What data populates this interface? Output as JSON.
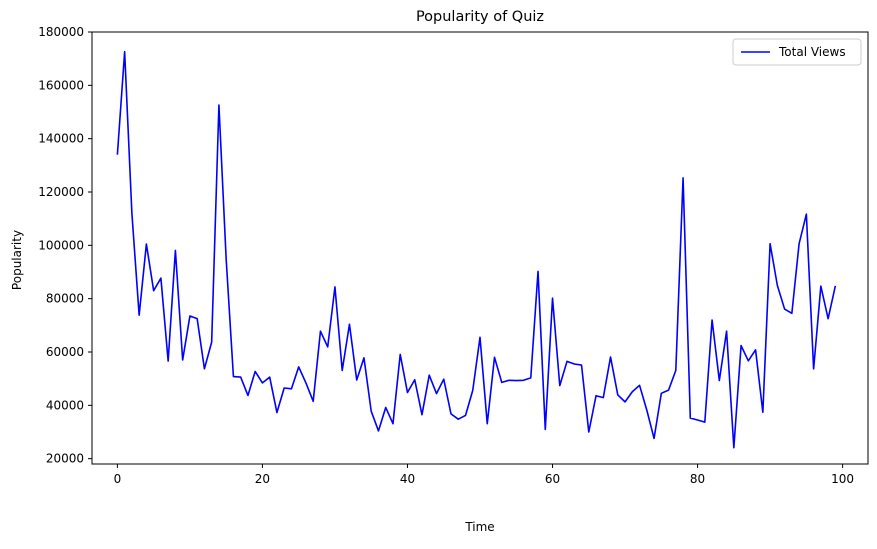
{
  "chart_data": {
    "type": "line",
    "title": "Popularity of Quiz",
    "xlabel": "Time",
    "ylabel": "Popularity",
    "xlim": [
      -3.5,
      103.5
    ],
    "ylim": [
      18000,
      180000
    ],
    "xticks": [
      0,
      20,
      40,
      60,
      80,
      100
    ],
    "yticks": [
      20000,
      40000,
      60000,
      80000,
      100000,
      120000,
      140000,
      160000,
      180000
    ],
    "grid": false,
    "legend": "top-right",
    "series": [
      {
        "name": "Total Views",
        "color": "#0000ff",
        "x": [
          0,
          1,
          2,
          3,
          4,
          5,
          6,
          7,
          8,
          9,
          10,
          11,
          12,
          13,
          14,
          15,
          16,
          17,
          18,
          19,
          20,
          21,
          22,
          23,
          24,
          25,
          26,
          27,
          28,
          29,
          30,
          31,
          32,
          33,
          34,
          35,
          36,
          37,
          38,
          39,
          40,
          41,
          42,
          43,
          44,
          45,
          46,
          47,
          48,
          49,
          50,
          51,
          52,
          53,
          54,
          55,
          56,
          57,
          58,
          59,
          60,
          61,
          62,
          63,
          64,
          65,
          66,
          67,
          68,
          69,
          70,
          71,
          72,
          73,
          74,
          75,
          76,
          77,
          78,
          79,
          80,
          81,
          82,
          83,
          84,
          85,
          86,
          87,
          88,
          89,
          90,
          91,
          92,
          93,
          94,
          95,
          96,
          97,
          98,
          99
        ],
        "y": [
          134000,
          172600,
          112000,
          73800,
          100500,
          83000,
          87700,
          56600,
          98100,
          57000,
          73500,
          72500,
          53700,
          63700,
          152600,
          94800,
          50800,
          50600,
          43700,
          52700,
          48400,
          50600,
          37300,
          46500,
          46200,
          54400,
          48400,
          41500,
          67800,
          61900,
          84400,
          53100,
          70400,
          49500,
          57800,
          37800,
          30400,
          39200,
          33100,
          59100,
          44800,
          49600,
          36500,
          51300,
          44400,
          49800,
          36800,
          34800,
          36200,
          45600,
          65500,
          33100,
          58000,
          48600,
          49400,
          49300,
          49400,
          50300,
          90200,
          31000,
          80200,
          47400,
          56500,
          55500,
          55100,
          30000,
          43600,
          42900,
          58100,
          43900,
          41300,
          45100,
          47500,
          38200,
          27600,
          44500,
          45700,
          53100,
          125300,
          35200,
          34500,
          33700,
          72000,
          49300,
          67800,
          24100,
          62400,
          56700,
          60800,
          37400,
          100600,
          85000,
          76100,
          74500,
          100600,
          111700,
          53700,
          84700,
          72500,
          84800
        ]
      }
    ]
  }
}
